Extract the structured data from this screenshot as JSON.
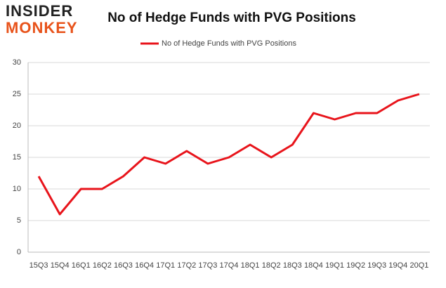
{
  "logo": {
    "top": "INSIDER",
    "bottom": "MONKEY"
  },
  "chart_data": {
    "type": "line",
    "title": "No of Hedge Funds with PVG Positions",
    "categories": [
      "15Q3",
      "15Q4",
      "16Q1",
      "16Q2",
      "16Q3",
      "16Q4",
      "17Q1",
      "17Q2",
      "17Q3",
      "17Q4",
      "18Q1",
      "18Q2",
      "18Q3",
      "18Q4",
      "19Q1",
      "19Q2",
      "19Q3",
      "19Q4",
      "20Q1"
    ],
    "series": [
      {
        "name": "No of Hedge Funds with PVG Positions",
        "color": "#e8141b",
        "values": [
          12,
          6,
          10,
          10,
          12,
          15,
          14,
          16,
          14,
          15,
          17,
          15,
          17,
          22,
          21,
          22,
          22,
          24,
          25
        ]
      }
    ],
    "ylim": [
      0,
      30
    ],
    "yticks": [
      0,
      5,
      10,
      15,
      20,
      25,
      30
    ],
    "grid": true,
    "legend": "top"
  }
}
